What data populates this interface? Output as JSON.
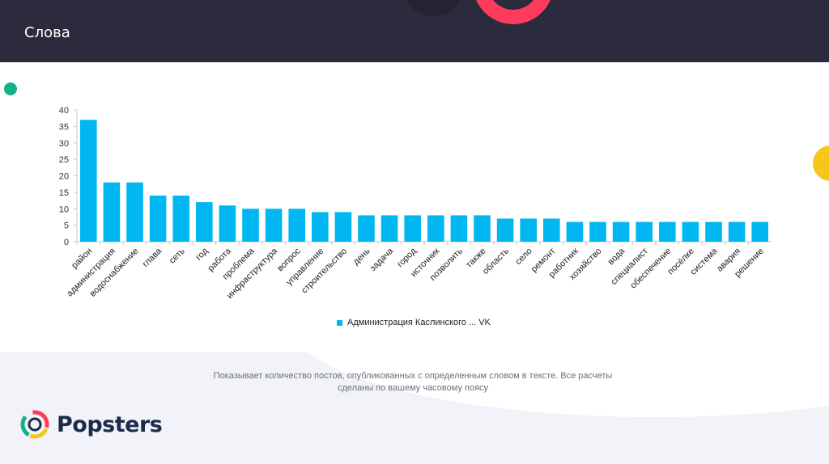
{
  "header": {
    "title": "Слова"
  },
  "colors": {
    "bar": "#00b7f1",
    "header_bg": "#2b2b3d",
    "accent_red": "#ff3b5c",
    "accent_green": "#13b38a",
    "accent_yellow": "#f6c61a"
  },
  "chart_data": {
    "type": "bar",
    "title": "",
    "xlabel": "",
    "ylabel": "",
    "ylim": [
      0,
      40
    ],
    "yticks": [
      0,
      5,
      10,
      15,
      20,
      25,
      30,
      35,
      40
    ],
    "categories": [
      "район",
      "администрация",
      "водоснабжение",
      "глава",
      "сеть",
      "год",
      "работа",
      "проблема",
      "инфраструктура",
      "вопрос",
      "управление",
      "строительство",
      "день",
      "задача",
      "город",
      "источник",
      "позволить",
      "также",
      "область",
      "село",
      "ремонт",
      "работник",
      "хозяйство",
      "вода",
      "специалист",
      "обеспечение",
      "посёлке",
      "система",
      "авария",
      "решение"
    ],
    "series": [
      {
        "name": "Администрация Каслинского ... VK",
        "values": [
          37,
          18,
          18,
          14,
          14,
          12,
          11,
          10,
          10,
          10,
          9,
          9,
          8,
          8,
          8,
          8,
          8,
          8,
          7,
          7,
          7,
          6,
          6,
          6,
          6,
          6,
          6,
          6,
          6,
          6
        ]
      }
    ]
  },
  "legend": {
    "label": "Администрация Каслинского ... VK"
  },
  "footer": {
    "description_line1": "Показывает количество постов, опубликованных с определенным словом в тексте. Все расчеты",
    "description_line2": "сделаны по вашему часовому поясу",
    "logo_text": "Popsters"
  }
}
